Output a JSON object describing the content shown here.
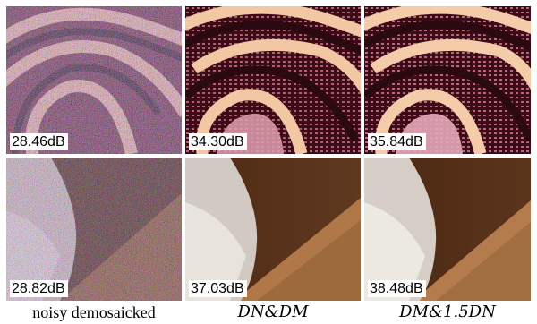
{
  "columns": [
    {
      "caption": "noisy demosaicked",
      "caption_style": "plain"
    },
    {
      "caption": "DN&DM",
      "caption_style": "math"
    },
    {
      "caption": "DM&1.5DN",
      "caption_style": "math"
    }
  ],
  "rows": [
    {
      "content": "tapestry",
      "psnr": [
        "28.46dB",
        "34.30dB",
        "35.84dB"
      ]
    },
    {
      "content": "glass-on-wood",
      "psnr": [
        "28.82dB",
        "37.03dB",
        "38.48dB"
      ]
    }
  ],
  "colors": {
    "fabric_dark": "#2a0a10",
    "fabric_light": "#f0c8a0",
    "wood": "#5a3318",
    "table_edge": "#b07848"
  }
}
